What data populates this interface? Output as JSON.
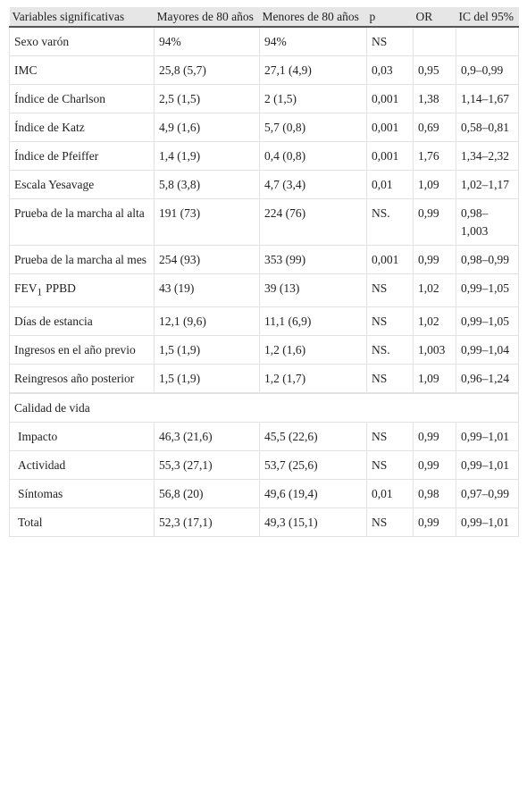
{
  "table": {
    "header": [
      "Variables significativas",
      "Mayores de 80 años",
      "Menores de 80 años",
      "p",
      "OR",
      "IC del 95%"
    ],
    "rows": [
      [
        "Sexo varón",
        "94%",
        "94%",
        "NS"
      ],
      [
        "IMC",
        "25,8 (5,7)",
        "27,1 (4,9)",
        "0,03",
        "0,95",
        "0,9–0,99"
      ],
      [
        "Índice de Charlson",
        "2,5 (1,5)",
        "2 (1,5)",
        "0,001",
        "1,38",
        "1,14–1,67"
      ],
      [
        "Índice de Katz",
        "4,9 (1,6)",
        "5,7 (0,8)",
        "0,001",
        "0,69",
        "0,58–0,81"
      ],
      [
        "Índice de Pfeiffer",
        "1,4 (1,9)",
        "0,4 (0,8)",
        "0,001",
        "1,76",
        "1,34–2,32"
      ],
      [
        "Escala Yesavage",
        "5,8 (3,8)",
        "4,7 (3,4)",
        "0,01",
        "1,09",
        "1,02–1,17"
      ],
      [
        "Prueba de la marcha al alta",
        "191 (73)",
        "224 (76)",
        "NS.",
        "0,99",
        "0,98–1,003"
      ],
      [
        "Prueba de la marcha al mes",
        "254 (93)",
        "353 (99)",
        "0,001",
        "0,99",
        "0,98–0,99"
      ],
      [
        {
          "main": "FEV",
          "sub": "1",
          "rest": "PPBD"
        },
        "43 (19)",
        "39 (13)",
        "NS",
        "1,02",
        "0,99–1,05"
      ],
      [
        "Días de estancia",
        "12,1 (9,6)",
        "11,1 (6,9)",
        "NS",
        "1,02",
        "0,99–1,05"
      ],
      [
        "Ingresos en el año previo",
        "1,5 (1,9)",
        "1,2 (1,6)",
        "NS.",
        "1,003",
        "0,99–1,04"
      ],
      [
        "Reingresos año posterior",
        "1,5 (1,9)",
        "1,2 (1,7)",
        "NS",
        "1,09",
        "0,96–1,24"
      ]
    ],
    "quality": {
      "title": "Calidad de vida",
      "rows": [
        [
          "Impacto",
          "46,3 (21,6)",
          "45,5 (22,6)",
          "NS",
          "0,99",
          "0,99–1,01"
        ],
        [
          "Actividad",
          "55,3 (27,1)",
          "53,7 (25,6)",
          "NS",
          "0,99",
          "0,99–1,01"
        ],
        [
          "Síntomas",
          "56,8 (20)",
          "49,6 (19,4)",
          "0,01",
          "0,98",
          "0,97–0,99"
        ],
        [
          "Total",
          "52,3 (17,1)",
          "49,3 (15,1)",
          "NS",
          "0,99",
          "0,99–1,01"
        ]
      ]
    }
  }
}
